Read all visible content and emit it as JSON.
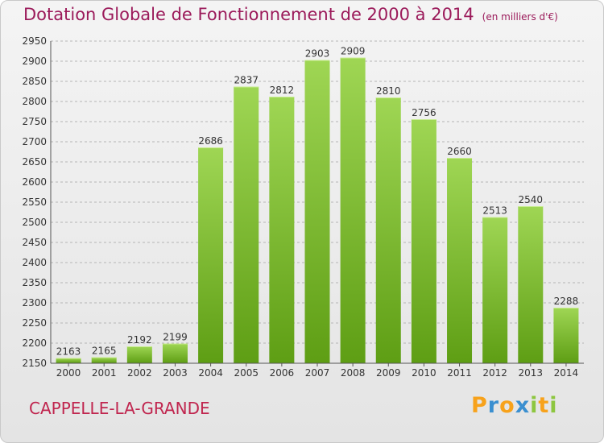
{
  "header": {
    "title": "Dotation Globale de Fonctionnement de 2000 à 2014",
    "subtitle": "(en milliers d'€)"
  },
  "commune": "CAPPELLE-LA-GRANDE",
  "logo": {
    "text": "Proxiti",
    "letters": [
      {
        "char": "P",
        "color": "#f7a21b"
      },
      {
        "char": "r",
        "color": "#3a8fd0"
      },
      {
        "char": "o",
        "color": "#f7a21b"
      },
      {
        "char": "x",
        "color": "#3a8fd0"
      },
      {
        "char": "i",
        "color": "#8dc63f"
      },
      {
        "char": "t",
        "color": "#f7a21b"
      },
      {
        "char": "i",
        "color": "#8dc63f"
      }
    ]
  },
  "colors": {
    "bar_top": "#9fd654",
    "bar_bottom": "#5e9e14",
    "title": "#9b1a5a",
    "commune": "#c0254e"
  },
  "chart_data": {
    "type": "bar",
    "title": "Dotation Globale de Fonctionnement de 2000 à 2014",
    "subtitle": "(en milliers d'€)",
    "xlabel": "",
    "ylabel": "",
    "categories": [
      "2000",
      "2001",
      "2002",
      "2003",
      "2004",
      "2005",
      "2006",
      "2007",
      "2008",
      "2009",
      "2010",
      "2011",
      "2012",
      "2013",
      "2014"
    ],
    "values": [
      2163,
      2165,
      2192,
      2199,
      2686,
      2837,
      2812,
      2903,
      2909,
      2810,
      2756,
      2660,
      2513,
      2540,
      2288
    ],
    "ylim": [
      2150,
      2950
    ],
    "yticks": [
      2150,
      2200,
      2250,
      2300,
      2350,
      2400,
      2450,
      2500,
      2550,
      2600,
      2650,
      2700,
      2750,
      2800,
      2850,
      2900,
      2950
    ],
    "grid": "horizontal dashed",
    "legend": "none",
    "data_labels": true
  }
}
